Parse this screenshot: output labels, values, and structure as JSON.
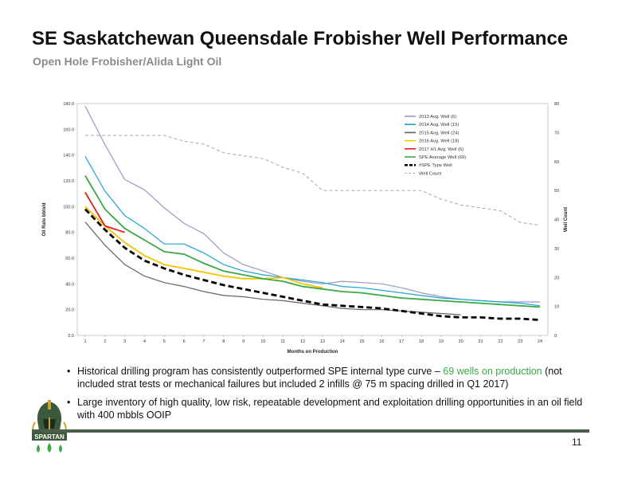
{
  "header": {
    "title": "SE Saskatchewan Queensdale Frobisher Well Performance",
    "subtitle": "Open Hole Frobisher/Alida Light Oil"
  },
  "bullets": {
    "b1_a": "Historical drilling program has consistently outperformed SPE internal type curve – ",
    "b1_highlight": "69 wells on production",
    "b1_b": " (not included strat tests or mechanical failures but included 2 infills @ 75 m spacing drilled in Q1 2017)",
    "b2": "Large inventory of high quality, low risk, repeatable development and exploitation drilling opportunities in an oil field with 400 mbbls OOIP"
  },
  "footer": {
    "page_number": "11",
    "logo_text": "SPARTAN"
  },
  "colors": {
    "highlight": "#3aa845",
    "rule": "#4b5d4b"
  },
  "chart_data": {
    "type": "line",
    "xlabel": "Months on Production",
    "ylabel": "Oil Rate bbls/d",
    "y2label": "Well Count",
    "x": [
      1,
      2,
      3,
      4,
      5,
      6,
      7,
      8,
      9,
      10,
      11,
      12,
      13,
      14,
      15,
      16,
      17,
      18,
      19,
      20,
      21,
      22,
      23,
      24
    ],
    "xlim": [
      1,
      24
    ],
    "ylim": [
      0,
      180
    ],
    "y2lim": [
      0,
      80
    ],
    "yticks": [
      "0.0",
      "20.0",
      "40.0",
      "60.0",
      "80.0",
      "100.0",
      "120.0",
      "140.0",
      "160.0",
      "180.0"
    ],
    "y2ticks": [
      "0",
      "10",
      "20",
      "30",
      "40",
      "50",
      "60",
      "70",
      "80"
    ],
    "legend": "top-right",
    "series": [
      {
        "name": "2013 Avg. Well (6)",
        "color": "#9f95c4",
        "axis": "left",
        "dash": "solid",
        "values": [
          178,
          148,
          121,
          113,
          99,
          87,
          79,
          64,
          55,
          50,
          45,
          42,
          40,
          42,
          41,
          40,
          37,
          33,
          30,
          28,
          27,
          26,
          26,
          26
        ]
      },
      {
        "name": "2014 Avg. Well (15)",
        "color": "#1aa3d4",
        "axis": "left",
        "dash": "solid",
        "values": [
          139,
          112,
          93,
          83,
          71,
          71,
          64,
          55,
          50,
          47,
          45,
          43,
          41,
          38,
          37,
          35,
          33,
          31,
          29,
          28,
          27,
          26,
          25,
          23
        ]
      },
      {
        "name": "2015 Avg. Well (24)",
        "color": "#636363",
        "axis": "left",
        "dash": "solid",
        "values": [
          88,
          70,
          55,
          46,
          41,
          38,
          34,
          31,
          30,
          28,
          27,
          25,
          23,
          21,
          20,
          20,
          19,
          18,
          17,
          16,
          null,
          null,
          null,
          null
        ]
      },
      {
        "name": "2016 Avg. Well (18)",
        "color": "#f5c400",
        "axis": "left",
        "dash": "solid",
        "values": [
          100,
          85,
          72,
          62,
          55,
          52,
          49,
          46,
          44,
          44,
          45,
          40,
          37,
          null,
          null,
          null,
          null,
          null,
          null,
          null,
          null,
          null,
          null,
          null
        ]
      },
      {
        "name": "2017 H1 Avg. Well (6)",
        "color": "#e0201b",
        "axis": "left",
        "dash": "solid",
        "values": [
          111,
          85,
          80,
          null,
          null,
          null,
          null,
          null,
          null,
          null,
          null,
          null,
          null,
          null,
          null,
          null,
          null,
          null,
          null,
          null,
          null,
          null,
          null,
          null
        ]
      },
      {
        "name": "SPE Average Well (69)",
        "color": "#3aa845",
        "axis": "left",
        "dash": "solid",
        "values": [
          124,
          98,
          83,
          74,
          65,
          63,
          56,
          50,
          47,
          44,
          42,
          38,
          36,
          34,
          33,
          31,
          29,
          28,
          27,
          26,
          25,
          24,
          23,
          22
        ]
      },
      {
        "name": "#SPE Type Well",
        "color": "#000000",
        "axis": "left",
        "dash": "dashed",
        "values": [
          98,
          82,
          68,
          58,
          52,
          47,
          43,
          39,
          36,
          33,
          30,
          27,
          24,
          23,
          22,
          21,
          19,
          17,
          15,
          14,
          14,
          13,
          13,
          12
        ]
      },
      {
        "name": "Well Count",
        "color": "#a6a6a6",
        "axis": "right",
        "dash": "dotted",
        "values": [
          69,
          69,
          69,
          69,
          69,
          67,
          66,
          63,
          62,
          61,
          58,
          56,
          50,
          50,
          50,
          50,
          50,
          50,
          47,
          45,
          44,
          43,
          39,
          38
        ]
      }
    ]
  }
}
